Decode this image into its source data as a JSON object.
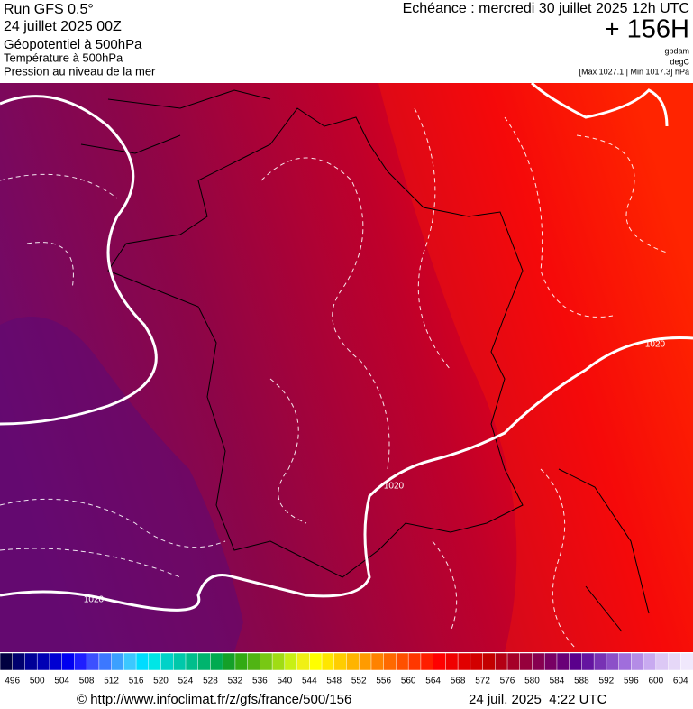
{
  "header": {
    "run": "Run GFS 0.5°",
    "date": "24 juillet 2025 00Z",
    "field1": "Géopotentiel à 500hPa",
    "field2": "Température à 500hPa",
    "field3": "Pression au niveau de la mer",
    "forecast": "Echéance : mercredi 30 juillet 2025 12h UTC",
    "lead": "+ 156H",
    "unit1": "gpdam",
    "unit2": "degC",
    "range": "[Max 1027.1 | Min 1017.3] hPa"
  },
  "map": {
    "isobar_labels": [
      "1020",
      "1020",
      "1020"
    ]
  },
  "colorbar": {
    "labels": [
      496,
      500,
      504,
      508,
      512,
      516,
      520,
      524,
      528,
      532,
      536,
      540,
      544,
      548,
      552,
      556,
      560,
      564,
      568,
      572,
      576,
      580,
      584,
      588,
      592,
      596,
      600,
      604
    ],
    "colors": [
      "#000040",
      "#00006e",
      "#000096",
      "#0000b4",
      "#0000d2",
      "#0000f0",
      "#1e1eff",
      "#3c50ff",
      "#3c78ff",
      "#3ca0ff",
      "#3cc8ff",
      "#00dcff",
      "#00e6e6",
      "#00d2c8",
      "#00c8aa",
      "#00be8c",
      "#00b46e",
      "#00aa50",
      "#14a028",
      "#32aa14",
      "#50b414",
      "#78c814",
      "#a0dc14",
      "#c8f014",
      "#f0f014",
      "#ffff00",
      "#ffe600",
      "#ffcd00",
      "#ffb400",
      "#ff9b00",
      "#ff8200",
      "#ff6900",
      "#ff5000",
      "#ff3700",
      "#ff1e00",
      "#ff0000",
      "#f00000",
      "#e10000",
      "#d20000",
      "#c30000",
      "#b40014",
      "#a50028",
      "#96003c",
      "#870050",
      "#780064",
      "#690078",
      "#5a008c",
      "#6414a0",
      "#7832b4",
      "#8c50c8",
      "#a06edc",
      "#b48ce6",
      "#c8aaf0",
      "#dcc8f5",
      "#e6d8f8",
      "#f0e8fc"
    ]
  },
  "footer": {
    "url": "© http://www.infoclimat.fr/z/gfs/france/500/156",
    "timestamp": "24 juil. 2025  4:22 UTC"
  }
}
